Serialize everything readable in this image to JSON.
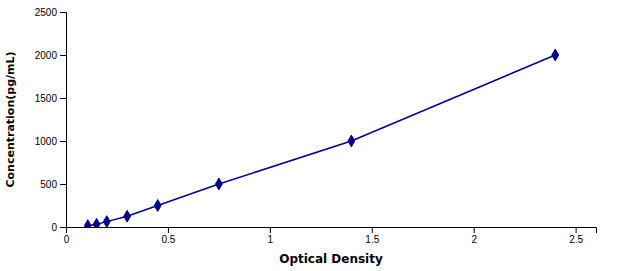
{
  "chart_data": {
    "type": "line",
    "x": [
      0.107,
      0.15,
      0.2,
      0.3,
      0.45,
      0.75,
      1.4,
      2.4
    ],
    "values": [
      15.625,
      31.25,
      62.5,
      125,
      250,
      500,
      1000,
      2000
    ],
    "color": "#00008B",
    "marker": "diamond",
    "xlabel": "Optical Density",
    "ylabel": "Concentration(pg/mL)",
    "xlim": [
      0.0,
      2.6
    ],
    "ylim": [
      0,
      2500
    ],
    "xticks": [
      0,
      0.5,
      1,
      1.5,
      2,
      2.5
    ],
    "yticks": [
      0,
      500,
      1000,
      1500,
      2000,
      2500
    ]
  }
}
